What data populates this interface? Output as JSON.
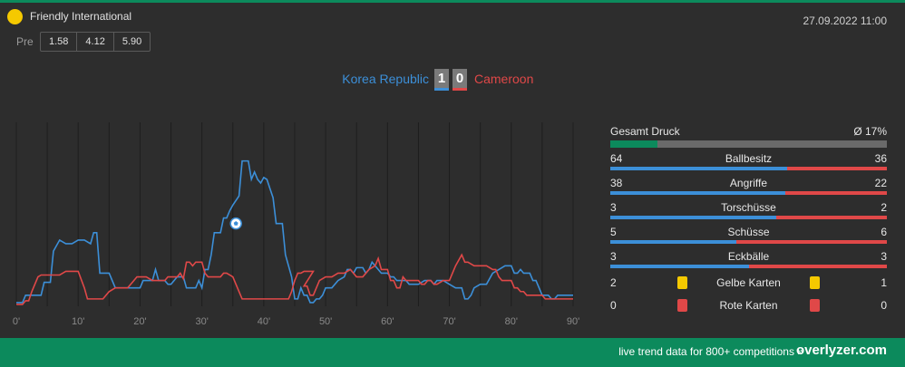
{
  "header": {
    "league": "Friendly International",
    "datetime": "27.09.2022 11:00",
    "pre_label": "Pre",
    "odds": [
      "1.58",
      "4.12",
      "5.90"
    ]
  },
  "match": {
    "home": "Korea Republic",
    "away": "Cameroon",
    "home_score": "1",
    "away_score": "0"
  },
  "colors": {
    "home": "#3c8fd8",
    "away": "#e04848",
    "accent": "#0c8a5c",
    "yellow_card": "#f5c900",
    "red_card": "#e04848"
  },
  "stats": {
    "druck_label": "Gesamt Druck",
    "druck_value": "Ø 17%",
    "druck_percent": 17,
    "rows": [
      {
        "name": "Ballbesitz",
        "home": "64",
        "away": "36"
      },
      {
        "name": "Angriffe",
        "home": "38",
        "away": "22"
      },
      {
        "name": "Torschüsse",
        "home": "3",
        "away": "2"
      },
      {
        "name": "Schüsse",
        "home": "5",
        "away": "6"
      },
      {
        "name": "Eckbälle",
        "home": "3",
        "away": "3"
      }
    ],
    "cards": [
      {
        "name": "Gelbe Karten",
        "home": "2",
        "away": "1",
        "icon": "yellow-card-icon"
      },
      {
        "name": "Rote Karten",
        "home": "0",
        "away": "0",
        "icon": "red-card-icon"
      }
    ]
  },
  "footer": {
    "promo": "live trend data for 800+ competitions »",
    "brand": "overlyzer.com"
  },
  "chart_data": {
    "type": "line",
    "xlabel": "",
    "ylabel": "",
    "xlim": [
      0,
      90
    ],
    "ylim": [
      0,
      100
    ],
    "x_ticks": [
      "0'",
      "10'",
      "20'",
      "30'",
      "40'",
      "50'",
      "60'",
      "70'",
      "80'",
      "90'"
    ],
    "grid": true,
    "events": [
      {
        "type": "goal",
        "minute": 35.5,
        "team": "home",
        "y": 45,
        "icon": "soccer-ball-icon"
      }
    ],
    "series": [
      {
        "team": "home",
        "points": [
          [
            0,
            2
          ],
          [
            1,
            2
          ],
          [
            1.5,
            6
          ],
          [
            4,
            6
          ],
          [
            4.5,
            13
          ],
          [
            5.5,
            13
          ],
          [
            6,
            30
          ],
          [
            6.5,
            33
          ],
          [
            7,
            36
          ],
          [
            8,
            34
          ],
          [
            9,
            34
          ],
          [
            10,
            36
          ],
          [
            11,
            36
          ],
          [
            12,
            34
          ],
          [
            12.5,
            40
          ],
          [
            13,
            40
          ],
          [
            13.5,
            18
          ],
          [
            15,
            18
          ],
          [
            15.5,
            14
          ],
          [
            16,
            10
          ],
          [
            20,
            10
          ],
          [
            20.5,
            14
          ],
          [
            22,
            14
          ],
          [
            22.5,
            20
          ],
          [
            23,
            14
          ],
          [
            24,
            14
          ],
          [
            24.5,
            12
          ],
          [
            25,
            12
          ],
          [
            25.5,
            14
          ],
          [
            26,
            16
          ],
          [
            27,
            16
          ],
          [
            27.5,
            10
          ],
          [
            29,
            10
          ],
          [
            29.5,
            14
          ],
          [
            30,
            10
          ],
          [
            30.5,
            20
          ],
          [
            31,
            20
          ],
          [
            31.5,
            28
          ],
          [
            32,
            40
          ],
          [
            33,
            40
          ],
          [
            33.5,
            48
          ],
          [
            34,
            48
          ],
          [
            34.5,
            52
          ],
          [
            35,
            55
          ],
          [
            36,
            60
          ],
          [
            36.5,
            79
          ],
          [
            37.5,
            79
          ],
          [
            38,
            69
          ],
          [
            38.5,
            73
          ],
          [
            39,
            69
          ],
          [
            39.5,
            67
          ],
          [
            40,
            70
          ],
          [
            40.5,
            69
          ],
          [
            41,
            64
          ],
          [
            41.5,
            59
          ],
          [
            42,
            45
          ],
          [
            43,
            45
          ],
          [
            43.5,
            28
          ],
          [
            44,
            22
          ],
          [
            44.5,
            16
          ],
          [
            45,
            4
          ],
          [
            45.5,
            4
          ],
          [
            46,
            10
          ],
          [
            46.5,
            6
          ],
          [
            47,
            6
          ],
          [
            47.5,
            2
          ],
          [
            48,
            2
          ],
          [
            48.5,
            4
          ],
          [
            49,
            4
          ],
          [
            49.5,
            6
          ],
          [
            50,
            10
          ],
          [
            51,
            10
          ],
          [
            52,
            14
          ],
          [
            53,
            16
          ],
          [
            53.5,
            20
          ],
          [
            54,
            20
          ],
          [
            54.5,
            18
          ],
          [
            55,
            21
          ],
          [
            56,
            21
          ],
          [
            56.5,
            18
          ],
          [
            57,
            20
          ],
          [
            57.5,
            24
          ],
          [
            58,
            22
          ],
          [
            58.5,
            20
          ],
          [
            59,
            18
          ],
          [
            60,
            18
          ],
          [
            60.5,
            16
          ],
          [
            61,
            16
          ],
          [
            61.5,
            14
          ],
          [
            63,
            14
          ],
          [
            63.5,
            12
          ],
          [
            65,
            12
          ],
          [
            66,
            14
          ],
          [
            67,
            14
          ],
          [
            67.5,
            12
          ],
          [
            68,
            14
          ],
          [
            69,
            14
          ],
          [
            70,
            12
          ],
          [
            71,
            10
          ],
          [
            72,
            10
          ],
          [
            72.5,
            4
          ],
          [
            73,
            4
          ],
          [
            73.5,
            6
          ],
          [
            74,
            10
          ],
          [
            75,
            12
          ],
          [
            76,
            12
          ],
          [
            77,
            18
          ],
          [
            78,
            20
          ],
          [
            79,
            22
          ],
          [
            80,
            22
          ],
          [
            80.5,
            18
          ],
          [
            81,
            18
          ],
          [
            81.5,
            20
          ],
          [
            82,
            18
          ],
          [
            83,
            18
          ],
          [
            83.5,
            14
          ],
          [
            84,
            14
          ],
          [
            84.5,
            10
          ],
          [
            85,
            6
          ],
          [
            86,
            6
          ],
          [
            86.5,
            4
          ],
          [
            87,
            4
          ],
          [
            87.5,
            6
          ],
          [
            88,
            6
          ],
          [
            89,
            6
          ],
          [
            90,
            6
          ]
        ]
      },
      {
        "team": "away",
        "points": [
          [
            0,
            1
          ],
          [
            1,
            1
          ],
          [
            1.5,
            3
          ],
          [
            2,
            3
          ],
          [
            2.5,
            8
          ],
          [
            3,
            12
          ],
          [
            3.5,
            16
          ],
          [
            4,
            17
          ],
          [
            5,
            17
          ],
          [
            6,
            17
          ],
          [
            7,
            17
          ],
          [
            8,
            19
          ],
          [
            10,
            19
          ],
          [
            11,
            10
          ],
          [
            11.5,
            4
          ],
          [
            12,
            4
          ],
          [
            13,
            4
          ],
          [
            14,
            4
          ],
          [
            15,
            8
          ],
          [
            16,
            10
          ],
          [
            18,
            10
          ],
          [
            18.5,
            12
          ],
          [
            19,
            14
          ],
          [
            19.5,
            16
          ],
          [
            20,
            16
          ],
          [
            21,
            16
          ],
          [
            22,
            14
          ],
          [
            23,
            14
          ],
          [
            24,
            14
          ],
          [
            24.5,
            16
          ],
          [
            26,
            16
          ],
          [
            26.5,
            18
          ],
          [
            27,
            15
          ],
          [
            27.5,
            24
          ],
          [
            28,
            24
          ],
          [
            28.5,
            22
          ],
          [
            29,
            24
          ],
          [
            30,
            24
          ],
          [
            30.5,
            18
          ],
          [
            31,
            16
          ],
          [
            32,
            16
          ],
          [
            32.5,
            16
          ],
          [
            33,
            16
          ],
          [
            33.5,
            18
          ],
          [
            34,
            18
          ],
          [
            35,
            16
          ],
          [
            35.5,
            12
          ],
          [
            36,
            8
          ],
          [
            36.5,
            4
          ],
          [
            37,
            4
          ],
          [
            38,
            4
          ],
          [
            40,
            4
          ],
          [
            42,
            4
          ],
          [
            43,
            4
          ],
          [
            44,
            4
          ],
          [
            44.5,
            8
          ],
          [
            45,
            14
          ],
          [
            45.5,
            18
          ],
          [
            46,
            18
          ],
          [
            46.5,
            19
          ],
          [
            48,
            19
          ],
          [
            46.5,
            11
          ],
          [
            47,
            11
          ],
          [
            47.5,
            6
          ],
          [
            48,
            6
          ],
          [
            48.5,
            10
          ],
          [
            49,
            14
          ],
          [
            50,
            16
          ],
          [
            51,
            16
          ],
          [
            52,
            18
          ],
          [
            53,
            18
          ],
          [
            54,
            20
          ],
          [
            54.5,
            18
          ],
          [
            55,
            16
          ],
          [
            56,
            16
          ],
          [
            57,
            20
          ],
          [
            58,
            22
          ],
          [
            58.5,
            26
          ],
          [
            59,
            20
          ],
          [
            60,
            20
          ],
          [
            60.5,
            14
          ],
          [
            61,
            14
          ],
          [
            61.5,
            10
          ],
          [
            62,
            10
          ],
          [
            62.5,
            16
          ],
          [
            63,
            14
          ],
          [
            64,
            14
          ],
          [
            65,
            14
          ],
          [
            65.5,
            12
          ],
          [
            66,
            12
          ],
          [
            66.5,
            14
          ],
          [
            67,
            14
          ],
          [
            67.5,
            12
          ],
          [
            68,
            12
          ],
          [
            69,
            14
          ],
          [
            70,
            14
          ],
          [
            71,
            22
          ],
          [
            72,
            28
          ],
          [
            72.5,
            24
          ],
          [
            73,
            24
          ],
          [
            74,
            22
          ],
          [
            76,
            22
          ],
          [
            77,
            20
          ],
          [
            77.5,
            20
          ],
          [
            78,
            16
          ],
          [
            78.5,
            14
          ],
          [
            79,
            14
          ],
          [
            80,
            14
          ],
          [
            80.5,
            10
          ],
          [
            81,
            10
          ],
          [
            81.5,
            8
          ],
          [
            82,
            8
          ],
          [
            82.5,
            6
          ],
          [
            83,
            6
          ],
          [
            85,
            6
          ],
          [
            85.5,
            4
          ],
          [
            86,
            4
          ],
          [
            90,
            4
          ]
        ]
      }
    ]
  }
}
